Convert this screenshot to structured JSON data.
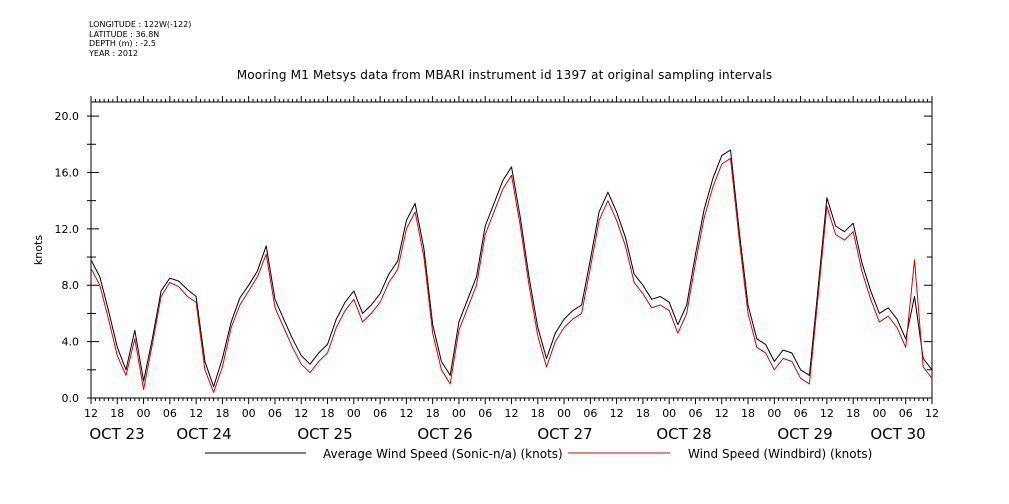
{
  "meta": {
    "longitude": "LONGITUDE : 122W(-122)",
    "latitude": "LATITUDE : 36.8N",
    "depth": "DEPTH (m) : -2.5",
    "year": "YEAR : 2012"
  },
  "chart_data": {
    "type": "line",
    "title": "Mooring M1 Metsys data from MBARI instrument id 1397 at original sampling intervals",
    "ylabel": "knots",
    "xlabel": "",
    "ylim": [
      0,
      21
    ],
    "yticks": [
      "0.0",
      "4.0",
      "8.0",
      "12.0",
      "16.0",
      "20.0"
    ],
    "x_hour_ticks": [
      "12",
      "18",
      "00",
      "06",
      "12",
      "18",
      "00",
      "06",
      "12",
      "18",
      "00",
      "06",
      "12",
      "18",
      "00",
      "06",
      "12",
      "18",
      "00",
      "06",
      "12",
      "18",
      "00",
      "06",
      "12",
      "18",
      "00",
      "06",
      "12",
      "18",
      "00",
      "06",
      "12"
    ],
    "dates": [
      "OCT 23",
      "OCT 24",
      "OCT 25",
      "OCT 26",
      "OCT 27",
      "OCT 28",
      "OCT 29",
      "OCT 30"
    ],
    "x_unit_note": "hours since first tick (OCT 23 12:00)",
    "grid": false,
    "legend_position": "bottom",
    "series": [
      {
        "name": "Average Wind Speed (Sonic-n/a) (knots)",
        "color": "#000000",
        "x": [
          0,
          2,
          4,
          6,
          8,
          10,
          12,
          14,
          16,
          18,
          20,
          22,
          24,
          26,
          28,
          30,
          32,
          34,
          36,
          38,
          40,
          42,
          44,
          46,
          48,
          50,
          52,
          54,
          56,
          58,
          60,
          62,
          64,
          66,
          68,
          70,
          72,
          74,
          76,
          78,
          80,
          82,
          84,
          86,
          88,
          90,
          92,
          94,
          96,
          98,
          100,
          102,
          104,
          106,
          108,
          110,
          112,
          114,
          116,
          118,
          120,
          122,
          124,
          126,
          128,
          130,
          132,
          134,
          136,
          138,
          140,
          142,
          144,
          146,
          148,
          150,
          152,
          154,
          156,
          158,
          160,
          162,
          164,
          166,
          168,
          170,
          172,
          174,
          176,
          178,
          180,
          182,
          184,
          186,
          188,
          190,
          192
        ],
        "values": [
          9.8,
          8.6,
          6.2,
          3.6,
          2.0,
          4.8,
          1.2,
          4.2,
          7.6,
          8.5,
          8.3,
          7.7,
          7.2,
          2.6,
          0.8,
          2.8,
          5.4,
          7.1,
          8.0,
          9.0,
          10.8,
          7.0,
          5.6,
          4.2,
          3.0,
          2.4,
          3.2,
          3.8,
          5.6,
          6.8,
          7.6,
          6.0,
          6.6,
          7.4,
          8.8,
          9.7,
          12.6,
          13.8,
          10.6,
          5.2,
          2.6,
          1.6,
          5.4,
          7.0,
          8.6,
          12.2,
          13.8,
          15.4,
          16.4,
          12.8,
          8.6,
          5.0,
          2.8,
          4.6,
          5.6,
          6.2,
          6.6,
          9.8,
          13.2,
          14.6,
          13.2,
          11.4,
          8.8,
          8.0,
          7.0,
          7.2,
          6.8,
          5.2,
          6.6,
          10.2,
          13.4,
          15.6,
          17.2,
          17.6,
          11.8,
          6.6,
          4.2,
          3.8,
          2.6,
          3.4,
          3.2,
          2.0,
          1.6,
          7.8,
          14.2,
          12.2,
          11.8,
          12.4,
          9.6,
          7.6,
          6.0,
          6.4,
          5.6,
          4.2,
          7.2,
          2.8,
          2.0
        ]
      },
      {
        "name": "Wind Speed (Windbird) (knots)",
        "color": "#e00000",
        "x": [
          0,
          2,
          4,
          6,
          8,
          10,
          12,
          14,
          16,
          18,
          20,
          22,
          24,
          26,
          28,
          30,
          32,
          34,
          36,
          38,
          40,
          42,
          44,
          46,
          48,
          50,
          52,
          54,
          56,
          58,
          60,
          62,
          64,
          66,
          68,
          70,
          72,
          74,
          76,
          78,
          80,
          82,
          84,
          86,
          88,
          90,
          92,
          94,
          96,
          98,
          100,
          102,
          104,
          106,
          108,
          110,
          112,
          114,
          116,
          118,
          120,
          122,
          124,
          126,
          128,
          130,
          132,
          134,
          136,
          138,
          140,
          142,
          144,
          146,
          148,
          150,
          152,
          154,
          156,
          158,
          160,
          162,
          164,
          166,
          168,
          170,
          172,
          174,
          176,
          178,
          180,
          182,
          184,
          186,
          188,
          190,
          192
        ],
        "values": [
          9.2,
          8.0,
          5.6,
          3.0,
          1.6,
          4.2,
          0.6,
          3.8,
          7.2,
          8.2,
          7.9,
          7.2,
          6.8,
          2.0,
          0.4,
          2.2,
          5.0,
          6.6,
          7.6,
          8.6,
          10.2,
          6.4,
          5.0,
          3.6,
          2.4,
          1.8,
          2.6,
          3.2,
          5.0,
          6.2,
          7.0,
          5.4,
          6.0,
          6.8,
          8.2,
          9.1,
          12.0,
          13.2,
          10.0,
          4.6,
          2.0,
          1.0,
          4.8,
          6.4,
          8.0,
          11.6,
          13.2,
          14.8,
          15.8,
          12.2,
          8.0,
          4.4,
          2.2,
          4.0,
          5.0,
          5.6,
          6.0,
          9.2,
          12.6,
          14.0,
          12.6,
          10.8,
          8.2,
          7.4,
          6.4,
          6.6,
          6.2,
          4.6,
          6.0,
          9.6,
          12.8,
          15.0,
          16.6,
          17.0,
          11.2,
          6.0,
          3.6,
          3.2,
          2.0,
          2.8,
          2.6,
          1.4,
          1.0,
          7.2,
          13.6,
          11.6,
          11.2,
          11.8,
          9.0,
          7.0,
          5.4,
          5.8,
          5.0,
          3.6,
          9.8,
          2.2,
          1.4
        ]
      }
    ]
  }
}
